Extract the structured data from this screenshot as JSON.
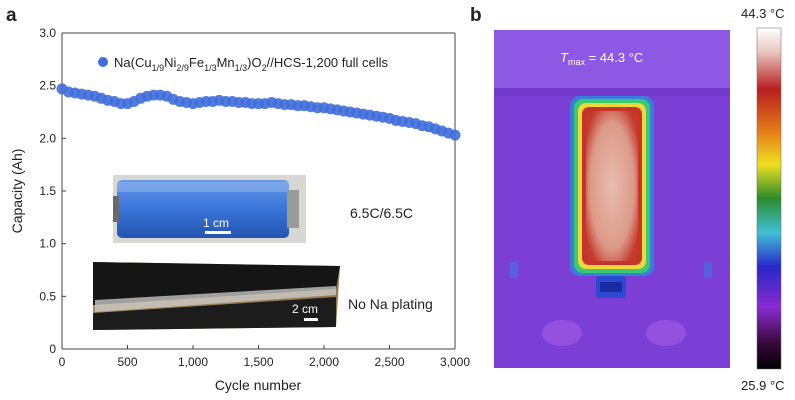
{
  "panel_a_letter": "a",
  "panel_b_letter": "b",
  "chart_data": {
    "type": "scatter",
    "xlabel": "Cycle number",
    "ylabel": "Capacity (Ah)",
    "xlim": [
      0,
      3000
    ],
    "ylim": [
      0,
      3.0
    ],
    "xticks": [
      0,
      500,
      1000,
      1500,
      2000,
      2500,
      3000
    ],
    "xtick_labels": [
      "0",
      "500",
      "1,000",
      "1,500",
      "2,000",
      "2,500",
      "3,000"
    ],
    "yticks": [
      0,
      0.5,
      1.0,
      1.5,
      2.0,
      2.5,
      3.0
    ],
    "ytick_labels": [
      "0",
      "0.5",
      "1.0",
      "1.5",
      "2.0",
      "2.5",
      "3.0"
    ],
    "grid": false,
    "legend_position": "top-right",
    "marker_color": "#3f6fdc",
    "series": [
      {
        "name": "Na(Cu1/9Ni2/9Fe1/3Mn1/3)O2//HCS-1,200 full cells",
        "x": [
          0,
          50,
          100,
          150,
          200,
          250,
          300,
          350,
          400,
          450,
          500,
          550,
          600,
          650,
          700,
          750,
          800,
          850,
          900,
          950,
          1000,
          1050,
          1100,
          1150,
          1200,
          1250,
          1300,
          1350,
          1400,
          1450,
          1500,
          1550,
          1600,
          1650,
          1700,
          1750,
          1800,
          1850,
          1900,
          1950,
          2000,
          2050,
          2100,
          2150,
          2200,
          2250,
          2300,
          2350,
          2400,
          2450,
          2500,
          2550,
          2600,
          2650,
          2700,
          2750,
          2800,
          2850,
          2900,
          2950,
          3000
        ],
        "y": [
          2.47,
          2.44,
          2.43,
          2.42,
          2.41,
          2.4,
          2.38,
          2.36,
          2.35,
          2.33,
          2.33,
          2.35,
          2.38,
          2.4,
          2.41,
          2.41,
          2.4,
          2.37,
          2.35,
          2.34,
          2.33,
          2.34,
          2.35,
          2.35,
          2.36,
          2.35,
          2.35,
          2.34,
          2.34,
          2.33,
          2.33,
          2.33,
          2.34,
          2.33,
          2.32,
          2.32,
          2.31,
          2.31,
          2.3,
          2.29,
          2.29,
          2.28,
          2.27,
          2.26,
          2.25,
          2.24,
          2.23,
          2.22,
          2.21,
          2.2,
          2.19,
          2.17,
          2.16,
          2.15,
          2.14,
          2.12,
          2.11,
          2.09,
          2.07,
          2.05,
          2.03
        ]
      }
    ],
    "legend": {
      "prefix": "Na(Cu",
      "cu_sub": "1/9",
      "ni_text": "Ni",
      "ni_sub": "2/9",
      "fe_text": "Fe",
      "fe_sub": "1/3",
      "mn_text": "Mn",
      "mn_sub": "1/3",
      "o_text": ")O",
      "o_sub": "2",
      "suffix": "//HCS-1,200 full cells"
    },
    "annotations": {
      "rate": "6.5C/6.5C",
      "plating": "No Na plating",
      "scalebar_cell": "1 cm",
      "scalebar_electrode": "2 cm"
    }
  },
  "thermal": {
    "tmax_label": "T",
    "tmax_sub": "max",
    "tmax_value": " = 44.3 °C",
    "colorbar_max": "44.3 °C",
    "colorbar_min": "25.9 °C",
    "colors": {
      "background": "#7b3fd6",
      "top_band": "#8c58e4",
      "cell_core": "#d9a08e",
      "cell_edge": "#c23a2a"
    }
  }
}
